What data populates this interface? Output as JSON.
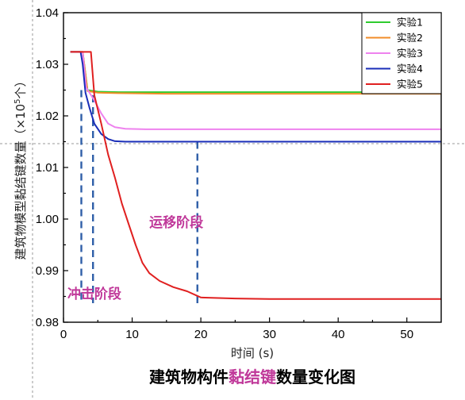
{
  "chart_data": {
    "type": "line",
    "xlabel": "时间 (s)",
    "ylabel": "建筑物模型黏结键数量（×10",
    "ylabel_sup": "5",
    "ylabel_end": "个）",
    "xlim": [
      0,
      55
    ],
    "ylim": [
      0.98,
      1.04
    ],
    "xticks": [
      0,
      10,
      20,
      30,
      40,
      50
    ],
    "yticks": [
      0.98,
      0.99,
      1.0,
      1.01,
      1.02,
      1.03,
      1.04
    ],
    "ytick_labels": [
      "0.98",
      "0.99",
      "1.00",
      "1.01",
      "1.02",
      "1.03",
      "1.04"
    ],
    "legend_position": "top-right",
    "series": [
      {
        "name": "实验1",
        "color": "#2ecc2e",
        "x": [
          1.0,
          2.8,
          3.5,
          5,
          8,
          15,
          25,
          35,
          45,
          55
        ],
        "y": [
          1.0324,
          1.0324,
          1.025,
          1.0247,
          1.0246,
          1.0246,
          1.0246,
          1.0246,
          1.0246,
          1.0246
        ]
      },
      {
        "name": "实验2",
        "color": "#f28c28",
        "x": [
          1.0,
          2.8,
          3.5,
          5,
          8,
          15,
          25,
          35,
          45,
          55
        ],
        "y": [
          1.0324,
          1.0324,
          1.0248,
          1.0245,
          1.0244,
          1.0243,
          1.0243,
          1.0243,
          1.0243,
          1.0243
        ]
      },
      {
        "name": "实验3",
        "color": "#ee82ee",
        "x": [
          1.0,
          2.8,
          3.3,
          4.5,
          5.5,
          6.5,
          7.5,
          9,
          12,
          20,
          30,
          40,
          55
        ],
        "y": [
          1.0324,
          1.0324,
          1.0255,
          1.023,
          1.0205,
          1.0185,
          1.0178,
          1.0175,
          1.0174,
          1.0174,
          1.0174,
          1.0174,
          1.0174
        ]
      },
      {
        "name": "实验4",
        "color": "#1a2eb8",
        "x": [
          1.0,
          2.5,
          2.8,
          3.2,
          3.8,
          4.5,
          5.5,
          6.5,
          7.5,
          9,
          12,
          20,
          30,
          40,
          55
        ],
        "y": [
          1.0324,
          1.0324,
          1.03,
          1.0245,
          1.0215,
          1.0185,
          1.0165,
          1.0155,
          1.0151,
          1.015,
          1.015,
          1.015,
          1.015,
          1.015,
          1.015
        ]
      },
      {
        "name": "实验5",
        "color": "#e02020",
        "x": [
          1.0,
          4.0,
          4.5,
          5.5,
          6.5,
          7.5,
          8.5,
          9.5,
          10.5,
          11.5,
          12.5,
          14,
          16,
          18,
          20,
          25,
          30,
          40,
          55
        ],
        "y": [
          1.0324,
          1.0324,
          1.024,
          1.0185,
          1.0125,
          1.008,
          1.003,
          0.999,
          0.995,
          0.9915,
          0.9895,
          0.988,
          0.9868,
          0.986,
          0.9848,
          0.9846,
          0.9845,
          0.9845,
          0.9845
        ]
      }
    ],
    "phase_markers_x": [
      2.6,
      4.3,
      19.5
    ],
    "annotations": [
      {
        "text": "运移阶段",
        "x": 12.5,
        "y": 0.9985
      },
      {
        "text": "冲击阶段",
        "x": 4.5,
        "y": 0.9846
      }
    ],
    "caption_parts": [
      "建筑物构件",
      "黏结键",
      "数量变化图"
    ],
    "caption_colors": [
      "#000000",
      "#c0399a",
      "#000000"
    ]
  }
}
